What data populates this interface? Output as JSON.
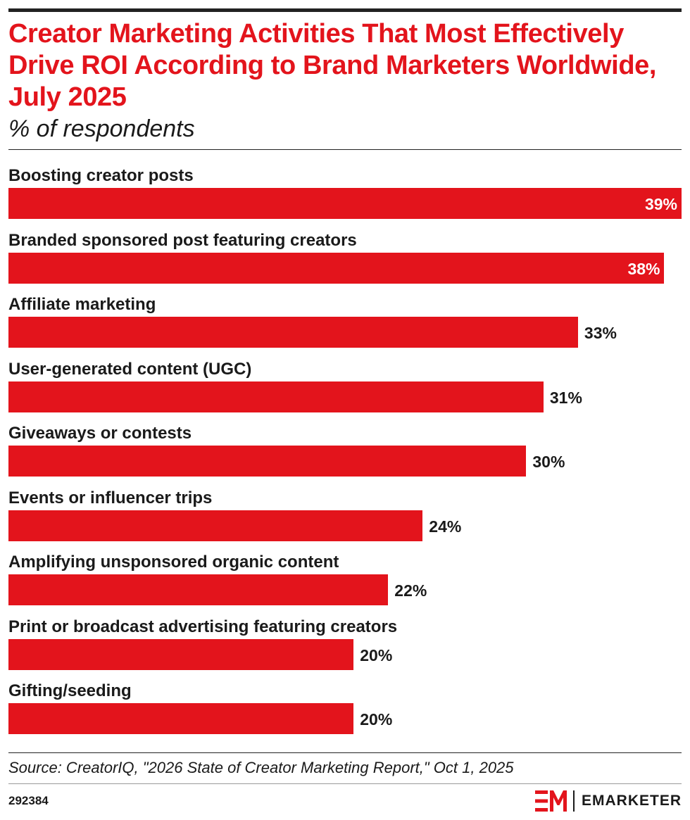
{
  "title": "Creator Marketing Activities That Most Effectively Drive ROI According to Brand Marketers Worldwide, July 2025",
  "subtitle": "% of respondents",
  "source": "Source: CreatorIQ, \"2026 State of Creator Marketing Report,\" Oct 1, 2025",
  "chart_id": "292384",
  "brand": {
    "logo_mark": "EM",
    "name": "EMARKETER",
    "accent_color": "#e3141c"
  },
  "chart_data": {
    "type": "bar",
    "orientation": "horizontal",
    "title": "Creator Marketing Activities That Most Effectively Drive ROI According to Brand Marketers Worldwide, July 2025",
    "subtitle": "% of respondents",
    "categories": [
      "Boosting creator posts",
      "Branded sponsored post featuring creators",
      "Affiliate marketing",
      "User-generated content (UGC)",
      "Giveaways or contests",
      "Events or influencer trips",
      "Amplifying unsponsored organic content",
      "Print or broadcast advertising featuring creators",
      "Gifting/seeding"
    ],
    "values": [
      39,
      38,
      33,
      31,
      30,
      24,
      22,
      20,
      20
    ],
    "value_labels": [
      "39%",
      "38%",
      "33%",
      "31%",
      "30%",
      "24%",
      "22%",
      "20%",
      "20%"
    ],
    "unit": "%",
    "xlim": [
      0,
      39
    ],
    "grid": false,
    "legend": "none",
    "bar_color": "#e3141c"
  }
}
